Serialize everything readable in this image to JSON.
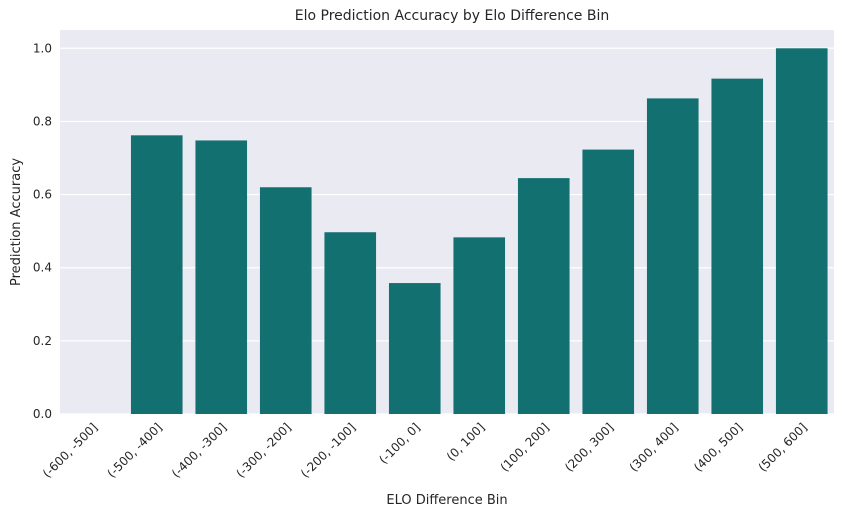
{
  "chart_data": {
    "type": "bar",
    "title": "Elo Prediction Accuracy by Elo Difference Bin",
    "xlabel": "ELO Difference Bin",
    "ylabel": "Prediction Accuracy",
    "categories": [
      "(-600, -500]",
      "(-500, -400]",
      "(-400, -300]",
      "(-300, -200]",
      "(-200, -100]",
      "(-100, 0]",
      "(0, 100]",
      "(100, 200]",
      "(200, 300]",
      "(300, 400]",
      "(400, 500]",
      "(500, 600]"
    ],
    "values": [
      0.0,
      0.762,
      0.748,
      0.62,
      0.497,
      0.358,
      0.483,
      0.645,
      0.723,
      0.863,
      0.917,
      1.0
    ],
    "ylim": [
      0,
      1.05
    ],
    "yticks": [
      0.0,
      0.2,
      0.4,
      0.6,
      0.8,
      1.0
    ],
    "ytick_labels": [
      "0.0",
      "0.2",
      "0.4",
      "0.6",
      "0.8",
      "1.0"
    ],
    "grid": true,
    "colors": {
      "bar": "#127070",
      "background": "#eaeaf2",
      "grid": "#ffffff"
    }
  }
}
